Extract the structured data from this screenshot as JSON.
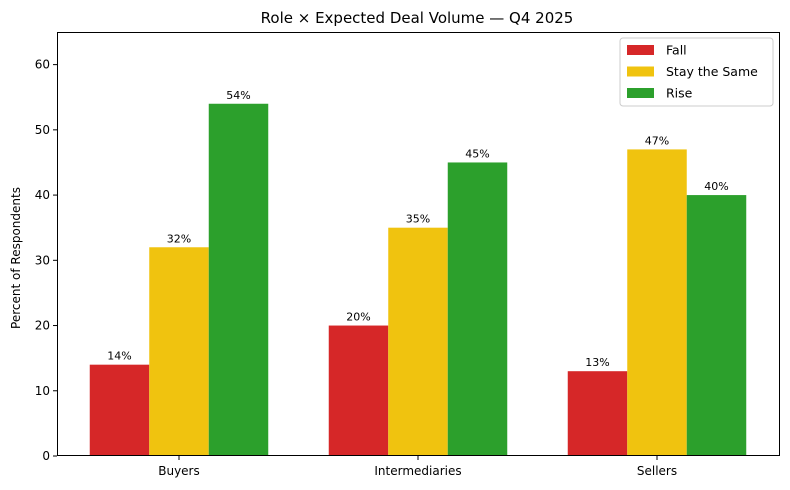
{
  "chart_data": {
    "type": "bar",
    "title": "Role × Expected Deal Volume — Q4 2025",
    "xlabel": "",
    "ylabel": "Percent of Respondents",
    "categories": [
      "Buyers",
      "Intermediaries",
      "Sellers"
    ],
    "series": [
      {
        "name": "Fall",
        "color": "#d62728",
        "values": [
          14,
          20,
          13
        ],
        "labels": [
          "14%",
          "20%",
          "13%"
        ]
      },
      {
        "name": "Stay the Same",
        "color": "#f0c30f",
        "values": [
          32,
          35,
          47
        ],
        "labels": [
          "32%",
          "35%",
          "47%"
        ]
      },
      {
        "name": "Rise",
        "color": "#2ca02c",
        "values": [
          54,
          45,
          40
        ],
        "labels": [
          "54%",
          "45%",
          "40%"
        ]
      }
    ],
    "ylim": [
      0,
      65
    ],
    "yticks": [
      0,
      10,
      20,
      30,
      40,
      50,
      60
    ],
    "legend_position": "top-right",
    "grid": false
  }
}
